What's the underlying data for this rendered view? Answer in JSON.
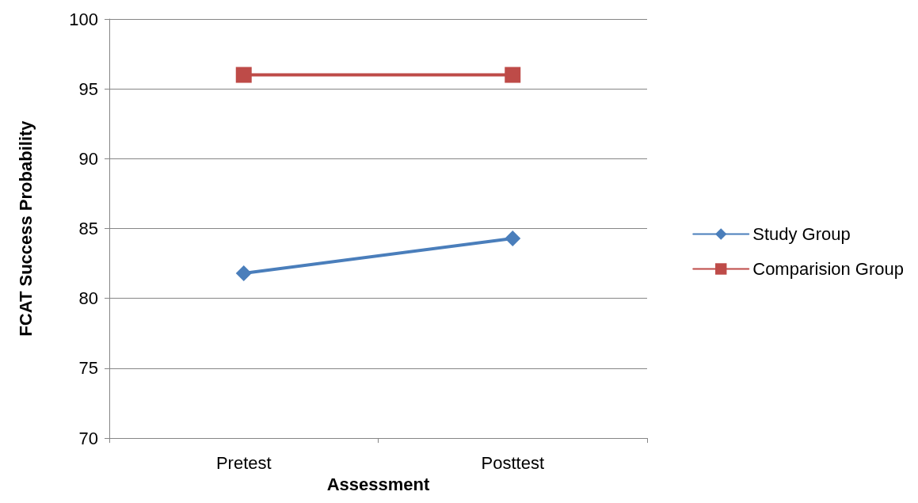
{
  "chart_data": {
    "type": "line",
    "xlabel": "Assessment",
    "ylabel": "FCAT Success Probability",
    "categories": [
      "Pretest",
      "Posttest"
    ],
    "series": [
      {
        "name": "Study Group",
        "color": "#4a7ebb",
        "marker": "diamond",
        "values": [
          81.8,
          84.3
        ]
      },
      {
        "name": "Comparision Group",
        "color": "#be4b48",
        "marker": "square",
        "values": [
          96.0,
          96.0
        ]
      }
    ],
    "ylim": [
      70,
      100
    ],
    "yticks": [
      70,
      75,
      80,
      85,
      90,
      95,
      100
    ],
    "grid": "y",
    "legend": "right"
  }
}
